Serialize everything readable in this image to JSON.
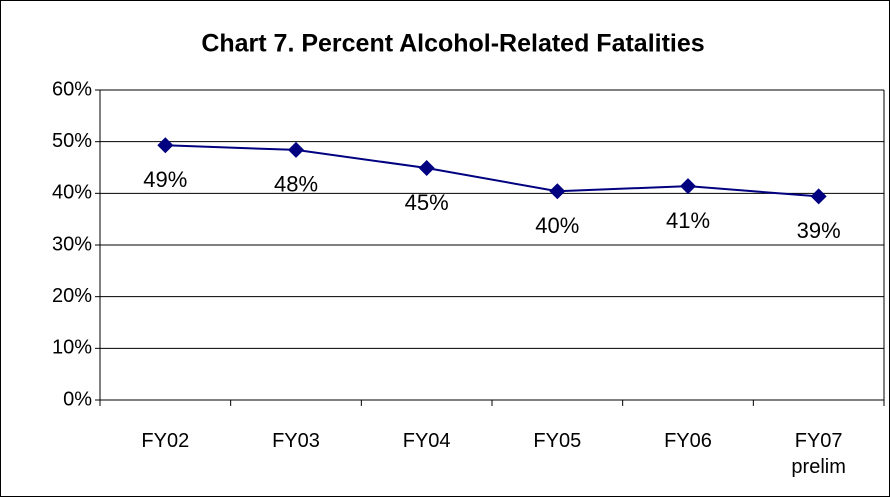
{
  "chart_data": {
    "type": "line",
    "title": "Chart 7. Percent Alcohol-Related Fatalities",
    "categories": [
      "FY02",
      "FY03",
      "FY04",
      "FY05",
      "FY06",
      "FY07 prelim"
    ],
    "series": [
      {
        "name": "Percent Alcohol-Related Fatalities",
        "color": "#000080",
        "values": [
          49.3,
          48.4,
          44.9,
          40.4,
          41.4,
          39.4
        ],
        "value_labels": [
          "49%",
          "48%",
          "45%",
          "40%",
          "41%",
          "39%"
        ]
      }
    ],
    "ylim": [
      0,
      60
    ],
    "yticks": [
      {
        "value": 0,
        "label": "0%"
      },
      {
        "value": 10,
        "label": "10%"
      },
      {
        "value": 20,
        "label": "20%"
      },
      {
        "value": 30,
        "label": "30%"
      },
      {
        "value": 40,
        "label": "40%"
      },
      {
        "value": 50,
        "label": "50%"
      },
      {
        "value": 60,
        "label": "60%"
      }
    ],
    "grid": true,
    "legend": false
  }
}
